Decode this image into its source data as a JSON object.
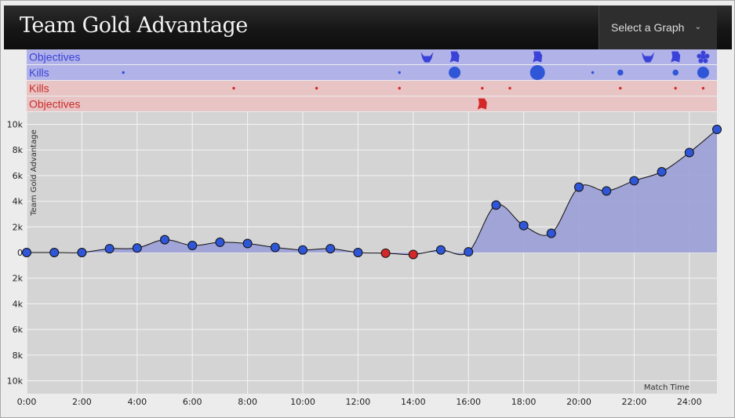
{
  "header": {
    "title": "Team Gold Advantage",
    "select_label": "Select a Graph"
  },
  "lanes": [
    {
      "label": "Objectives",
      "team": "blue"
    },
    {
      "label": "Kills",
      "team": "blue"
    },
    {
      "label": "Kills",
      "team": "red"
    },
    {
      "label": "Objectives",
      "team": "red"
    }
  ],
  "colors": {
    "blue_text": "#3a42d8",
    "red_text": "#cc2a2a",
    "blue_lane": "#b0b2e8",
    "red_lane": "#e8c4c4",
    "plot_bg": "#d4d4d4",
    "area_fill": "#9a9ed6",
    "blue_point": "#2f56d6",
    "red_point": "#d42828"
  },
  "events": {
    "blue_objectives": [
      {
        "t": 14.5,
        "icon": "baron-icon"
      },
      {
        "t": 15.5,
        "icon": "dragon-icon"
      },
      {
        "t": 18.5,
        "icon": "dragon-icon"
      },
      {
        "t": 22.5,
        "icon": "baron-icon"
      },
      {
        "t": 23.5,
        "icon": "dragon-icon"
      },
      {
        "t": 24.5,
        "icon": "tower-icon"
      }
    ],
    "blue_kills": [
      {
        "t": 3.5,
        "size": 1
      },
      {
        "t": 13.5,
        "size": 1
      },
      {
        "t": 15.5,
        "size": 4
      },
      {
        "t": 18.5,
        "size": 5
      },
      {
        "t": 20.5,
        "size": 1
      },
      {
        "t": 21.5,
        "size": 2
      },
      {
        "t": 23.5,
        "size": 2
      },
      {
        "t": 24.5,
        "size": 4
      }
    ],
    "red_kills": [
      {
        "t": 7.5,
        "size": 1
      },
      {
        "t": 10.5,
        "size": 1
      },
      {
        "t": 13.5,
        "size": 1
      },
      {
        "t": 16.5,
        "size": 1
      },
      {
        "t": 17.5,
        "size": 1
      },
      {
        "t": 21.5,
        "size": 1
      },
      {
        "t": 23.5,
        "size": 1
      },
      {
        "t": 24.5,
        "size": 1
      }
    ],
    "red_objectives": [
      {
        "t": 16.5,
        "icon": "dragon-icon"
      }
    ]
  },
  "chart_data": {
    "type": "area",
    "ylabel": "Team Gold Advantage",
    "xlabel": "Match Time",
    "xlim": [
      0,
      25
    ],
    "ylim": [
      -11000,
      10500
    ],
    "x_ticks": [
      "0:00",
      "2:00",
      "4:00",
      "6:00",
      "8:00",
      "10:00",
      "12:00",
      "14:00",
      "16:00",
      "18:00",
      "20:00",
      "22:00",
      "24:00"
    ],
    "y_ticks": [
      {
        "v": 10000,
        "label": "10k"
      },
      {
        "v": 8000,
        "label": "8k"
      },
      {
        "v": 6000,
        "label": "6k"
      },
      {
        "v": 4000,
        "label": "4k"
      },
      {
        "v": 2000,
        "label": "2k"
      },
      {
        "v": 0,
        "label": "0"
      },
      {
        "v": -2000,
        "label": "2k"
      },
      {
        "v": -4000,
        "label": "4k"
      },
      {
        "v": -6000,
        "label": "6k"
      },
      {
        "v": -8000,
        "label": "8k"
      },
      {
        "v": -10000,
        "label": "10k"
      }
    ],
    "minutes": [
      0,
      1,
      2,
      3,
      4,
      5,
      6,
      7,
      8,
      9,
      10,
      11,
      12,
      13,
      14,
      15,
      16,
      17,
      18,
      19,
      20,
      21,
      22,
      23,
      24,
      25
    ],
    "values": [
      0,
      0,
      0,
      300,
      350,
      1000,
      550,
      800,
      700,
      400,
      200,
      300,
      0,
      -50,
      -150,
      200,
      50,
      3700,
      2100,
      1500,
      5100,
      4800,
      5600,
      6300,
      7800,
      9600
    ]
  }
}
